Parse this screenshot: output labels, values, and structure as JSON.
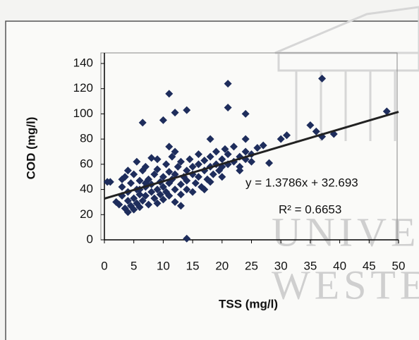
{
  "chart_data": {
    "type": "scatter",
    "x_label": "TSS (mg/l)",
    "y_label": "COD (mg/l)",
    "color": "#1e2d5c",
    "x": [
      1,
      2,
      2.5,
      3,
      3,
      3.5,
      3.5,
      4,
      4,
      4,
      4.5,
      4.5,
      5,
      5,
      5,
      5.5,
      5.5,
      5.5,
      6,
      6,
      6,
      6.5,
      6.5,
      7,
      7,
      7,
      7.5,
      7.5,
      8,
      8,
      8,
      8.5,
      8.5,
      9,
      9,
      9,
      9.5,
      9.5,
      10,
      10,
      10,
      10.5,
      10.5,
      11,
      11,
      11,
      11.5,
      11.5,
      12,
      12,
      12,
      12.5,
      13,
      13,
      13,
      13.5,
      14,
      14,
      14,
      14.5,
      15,
      15,
      15,
      15.5,
      16,
      16,
      16,
      16.5,
      17,
      17,
      17.5,
      18,
      18,
      18.5,
      19,
      19,
      19.5,
      20,
      20,
      20.5,
      21,
      21,
      22,
      22,
      23,
      23,
      24,
      24,
      25,
      26,
      4,
      7,
      9,
      12,
      3,
      6,
      13,
      17,
      18,
      20,
      0.5,
      14,
      11,
      12,
      14,
      6.5,
      10,
      21,
      21,
      24,
      28,
      37,
      35,
      36,
      39,
      37,
      48,
      30,
      31,
      27,
      24,
      18,
      11,
      23,
      25
    ],
    "values": [
      46,
      30,
      28,
      35,
      42,
      25,
      50,
      22,
      31,
      38,
      45,
      27,
      24,
      33,
      52,
      40,
      29,
      62,
      36,
      47,
      26,
      55,
      31,
      42,
      35,
      58,
      28,
      48,
      38,
      44,
      65,
      33,
      52,
      40,
      29,
      56,
      46,
      36,
      42,
      50,
      32,
      60,
      38,
      45,
      54,
      35,
      48,
      66,
      40,
      52,
      30,
      58,
      44,
      36,
      62,
      50,
      47,
      55,
      40,
      64,
      52,
      38,
      58,
      45,
      60,
      50,
      68,
      42,
      55,
      63,
      48,
      58,
      66,
      52,
      60,
      70,
      55,
      64,
      58,
      72,
      60,
      68,
      62,
      74,
      66,
      58,
      70,
      64,
      68,
      73,
      55,
      45,
      64,
      70,
      48,
      40,
      27,
      40,
      46,
      50,
      46,
      1,
      116,
      101,
      103,
      93,
      95,
      124,
      105,
      100,
      61,
      128,
      91,
      86,
      84,
      82,
      102,
      80,
      83,
      75,
      80,
      80,
      74,
      55,
      62
    ],
    "trendline": {
      "slope": 1.3786,
      "intercept": 32.693,
      "color": "#222222"
    },
    "annotations": [
      "y = 1.3786x + 32.693",
      "R² = 0.6653"
    ],
    "watermark": [
      "UNIVER",
      "WESTER"
    ],
    "xlim": [
      0,
      50
    ],
    "ylim": [
      0,
      140
    ],
    "xticks": [
      0,
      5,
      10,
      15,
      20,
      25,
      30,
      35,
      40,
      45,
      50
    ],
    "yticks": [
      0,
      20,
      40,
      60,
      80,
      100,
      120,
      140
    ]
  }
}
